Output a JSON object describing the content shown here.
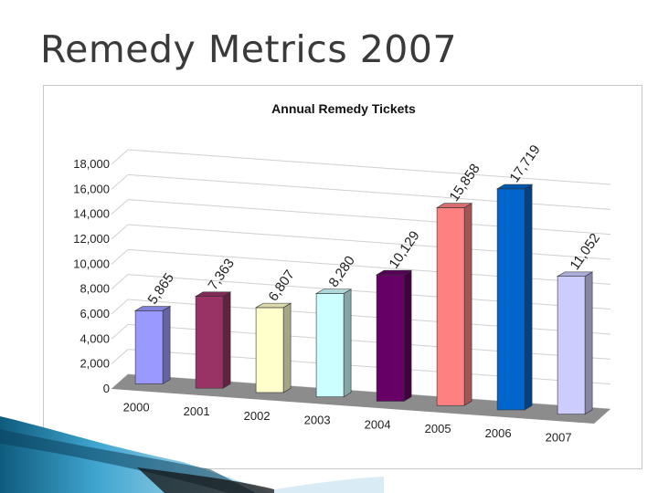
{
  "slide": {
    "title": "Remedy Metrics 2007"
  },
  "chart_data": {
    "type": "bar",
    "title": "Annual Remedy Tickets",
    "categories": [
      "2000",
      "2001",
      "2002",
      "2003",
      "2004",
      "2005",
      "2006",
      "2007"
    ],
    "values": [
      5865,
      7363,
      6807,
      8280,
      10129,
      15858,
      17719,
      11052
    ],
    "value_labels": [
      "5,865",
      "7,363",
      "6,807",
      "8,280",
      "10,129",
      "15,858",
      "17,719",
      "11,052"
    ],
    "ylim": [
      0,
      18000
    ],
    "yticks": [
      0,
      2000,
      4000,
      6000,
      8000,
      10000,
      12000,
      14000,
      16000,
      18000
    ],
    "ytick_labels": [
      "0",
      "2,000",
      "4,000",
      "6,000",
      "8,000",
      "10,000",
      "12,000",
      "14,000",
      "16,000",
      "18,000"
    ],
    "grid": true,
    "style": "3d",
    "legend": "none",
    "bar_colors": [
      "#9999ff",
      "#993366",
      "#ffffcc",
      "#ccffff",
      "#660066",
      "#ff8080",
      "#0066cc",
      "#ccccff"
    ],
    "xlabel": "",
    "ylabel": ""
  }
}
